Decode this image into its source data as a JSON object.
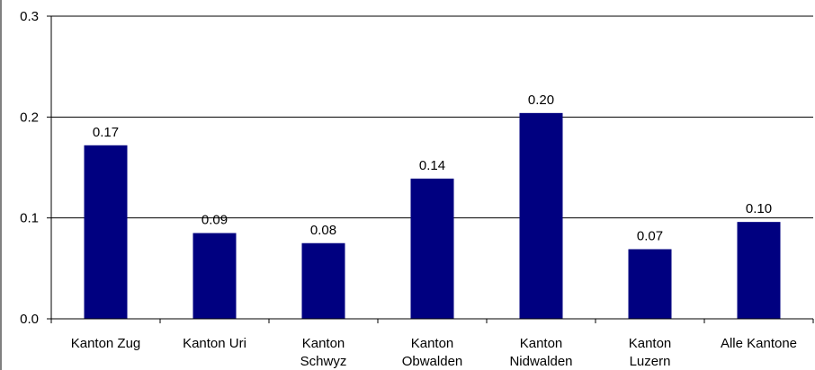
{
  "chart_data": {
    "type": "bar",
    "categories": [
      [
        "Kanton Zug"
      ],
      [
        "Kanton Uri"
      ],
      [
        "Kanton",
        "Schwyz"
      ],
      [
        "Kanton",
        "Obwalden"
      ],
      [
        "Kanton",
        "Nidwalden"
      ],
      [
        "Kanton",
        "Luzern"
      ],
      [
        "Alle Kantone"
      ]
    ],
    "values": [
      0.172,
      0.085,
      0.075,
      0.139,
      0.204,
      0.069,
      0.096
    ],
    "data_labels": [
      "0.17",
      "0.09",
      "0.08",
      "0.14",
      "0.20",
      "0.07",
      "0.10"
    ],
    "y_ticks": [
      "0.0",
      "0.1",
      "0.2",
      "0.3"
    ],
    "ylim": [
      0,
      0.3
    ],
    "title": "",
    "xlabel": "",
    "ylabel": "",
    "grid": true,
    "legend": "none",
    "colors": {
      "bar": "#000080",
      "axis": "#000000",
      "grid": "#000000"
    }
  }
}
